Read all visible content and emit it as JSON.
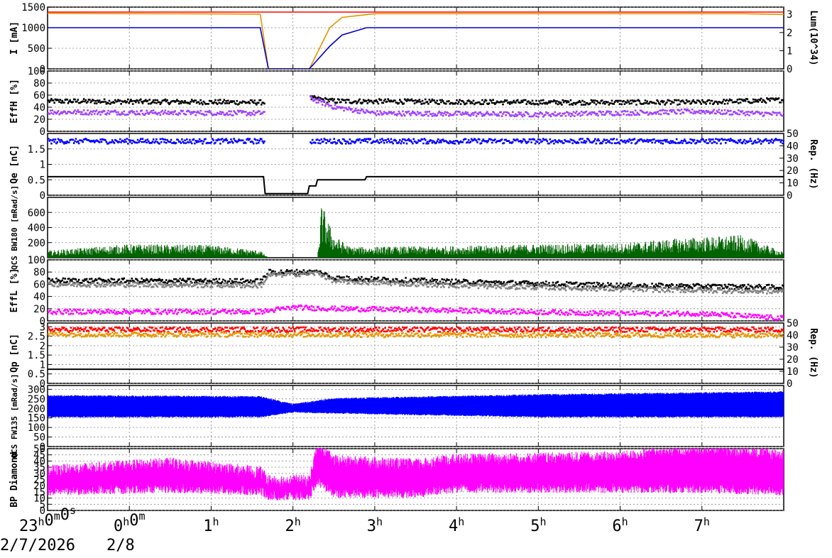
{
  "time_axis": {
    "ticks": [
      {
        "t": 0,
        "label": "23",
        "sup": "h",
        "label2": "0",
        "sup2": "m",
        "label3": "0",
        "sup3": "s"
      },
      {
        "t": 1,
        "label": "0",
        "sup": "h",
        "label2": "0",
        "sup2": "m"
      },
      {
        "t": 2,
        "label": "1",
        "sup": "h"
      },
      {
        "t": 3,
        "label": "2",
        "sup": "h"
      },
      {
        "t": 4,
        "label": "3",
        "sup": "h"
      },
      {
        "t": 5,
        "label": "4",
        "sup": "h"
      },
      {
        "t": 6,
        "label": "5",
        "sup": "h"
      },
      {
        "t": 7,
        "label": "6",
        "sup": "h"
      },
      {
        "t": 8,
        "label": "7",
        "sup": "h"
      }
    ],
    "range_hours": [
      0,
      9
    ],
    "date_left": "2/7/2026",
    "date_right": "2/8"
  },
  "chart_data": [
    {
      "type": "line",
      "panel": "current",
      "ylabel": "I [mA]",
      "ylim": [
        0,
        1500
      ],
      "yticks": [
        0,
        500,
        1000,
        1500
      ],
      "right_axis_label": "Lum(10^34)",
      "right_ylim": [
        0,
        3.4
      ],
      "right_yticks": [
        0,
        1,
        2,
        3
      ],
      "grid": true,
      "series": [
        {
          "color": "#e69500",
          "points": [
            [
              0,
              1350
            ],
            [
              1,
              1340
            ],
            [
              2,
              1335
            ],
            [
              2.6,
              1330
            ],
            [
              2.7,
              0
            ],
            [
              3.2,
              0
            ],
            [
              3.45,
              1000
            ],
            [
              3.6,
              1250
            ],
            [
              4.0,
              1340
            ],
            [
              8.5,
              1340
            ],
            [
              9,
              1320
            ]
          ]
        },
        {
          "color": "#0000cc",
          "points": [
            [
              0,
              1000
            ],
            [
              2.6,
              1000
            ],
            [
              2.7,
              0
            ],
            [
              3.2,
              0
            ],
            [
              3.45,
              550
            ],
            [
              3.6,
              820
            ],
            [
              3.9,
              1000
            ],
            [
              9,
              1000
            ]
          ]
        },
        {
          "color": "#ff0000",
          "points": [
            [
              0,
              1380
            ],
            [
              9,
              1380
            ]
          ]
        }
      ]
    },
    {
      "type": "scatter",
      "panel": "effH",
      "ylabel": "EffH [%]",
      "ylim": [
        0,
        100
      ],
      "yticks": [
        0,
        20,
        40,
        60,
        80,
        100
      ],
      "grid": true,
      "series": [
        {
          "color": "#000000",
          "level": [
            [
              0,
              50
            ],
            [
              2.6,
              48
            ],
            [
              3.2,
              55
            ],
            [
              3.5,
              50
            ],
            [
              6,
              48
            ],
            [
              8,
              48
            ],
            [
              9,
              52
            ]
          ],
          "gap": [
            2.65,
            3.2
          ]
        },
        {
          "color": "#a040ff",
          "level": [
            [
              0,
              32
            ],
            [
              2.6,
              30
            ],
            [
              3.2,
              55
            ],
            [
              3.5,
              40
            ],
            [
              4,
              30
            ],
            [
              6,
              28
            ],
            [
              8,
              33
            ],
            [
              9,
              28
            ]
          ],
          "gap": [
            2.65,
            3.2
          ]
        }
      ]
    },
    {
      "type": "scatter",
      "panel": "qe",
      "ylabel": "Qe [nC]",
      "ylim": [
        0,
        2
      ],
      "yticks": [
        0,
        0.5,
        1,
        1.5
      ],
      "right_axis_label": "Rep. (Hz)",
      "right_ylim": [
        0,
        50
      ],
      "right_yticks": [
        0,
        10,
        20,
        30,
        40,
        50
      ],
      "grid": true,
      "series": [
        {
          "color": "#0000ff",
          "level": [
            [
              0,
              1.75
            ],
            [
              9,
              1.75
            ]
          ],
          "gap": [
            2.65,
            3.2
          ]
        },
        {
          "color": "#000000",
          "step": [
            [
              0,
              0.6
            ],
            [
              2.65,
              0.05
            ],
            [
              3.2,
              0.3
            ],
            [
              3.3,
              0.5
            ],
            [
              3.9,
              0.6
            ],
            [
              9,
              0.6
            ]
          ]
        }
      ]
    },
    {
      "type": "area",
      "panel": "qcs_bw180",
      "ylabel": "QCS BW180 [mRad/s]",
      "ylim": [
        0,
        800
      ],
      "yticks": [
        200,
        400,
        600
      ],
      "grid": true,
      "series": [
        {
          "color": "#006400",
          "level": [
            [
              0,
              80
            ],
            [
              1,
              150
            ],
            [
              2,
              140
            ],
            [
              2.6,
              80
            ],
            [
              2.7,
              0
            ],
            [
              3.3,
              0
            ],
            [
              3.35,
              600
            ],
            [
              3.5,
              250
            ],
            [
              3.7,
              120
            ],
            [
              5,
              130
            ],
            [
              6,
              150
            ],
            [
              7,
              160
            ],
            [
              7.8,
              220
            ],
            [
              8.5,
              250
            ],
            [
              9,
              60
            ]
          ]
        }
      ]
    },
    {
      "type": "scatter",
      "panel": "effL",
      "ylabel": "EffL [%]",
      "ylim": [
        0,
        100
      ],
      "yticks": [
        0,
        20,
        40,
        60,
        80,
        100
      ],
      "grid": true,
      "series": [
        {
          "color": "#000000",
          "level": [
            [
              0,
              66
            ],
            [
              2.6,
              65
            ],
            [
              2.7,
              80
            ],
            [
              3.3,
              80
            ],
            [
              3.5,
              70
            ],
            [
              5,
              64
            ],
            [
              7,
              58
            ],
            [
              9,
              55
            ]
          ]
        },
        {
          "color": "#808080",
          "level": [
            [
              0,
              60
            ],
            [
              2.6,
              58
            ],
            [
              2.7,
              75
            ],
            [
              3.3,
              78
            ],
            [
              3.5,
              65
            ],
            [
              5,
              58
            ],
            [
              7,
              52
            ],
            [
              9,
              48
            ]
          ]
        },
        {
          "color": "#ff00ff",
          "level": [
            [
              0,
              15
            ],
            [
              2.6,
              15
            ],
            [
              3,
              22
            ],
            [
              3.5,
              20
            ],
            [
              5,
              17
            ],
            [
              7,
              12
            ],
            [
              8,
              12
            ],
            [
              9,
              4
            ]
          ]
        }
      ]
    },
    {
      "type": "scatter",
      "panel": "qp",
      "ylabel": "Qp [nC]",
      "ylim": [
        0,
        3.2
      ],
      "yticks": [
        0,
        0.5,
        1,
        1.5,
        2,
        2.5,
        3
      ],
      "right_axis_label": "Rep. (Hz)",
      "right_ylim": [
        0,
        50
      ],
      "right_yticks": [
        0,
        10,
        20,
        30,
        40,
        50
      ],
      "grid": true,
      "series": [
        {
          "color": "#ff0000",
          "level": [
            [
              0,
              2.85
            ],
            [
              9,
              2.85
            ]
          ]
        },
        {
          "color": "#e69500",
          "level": [
            [
              0,
              2.6
            ],
            [
              9,
              2.55
            ]
          ]
        },
        {
          "color": "#000000",
          "step": [
            [
              0,
              0.75
            ],
            [
              9,
              0.75
            ]
          ]
        }
      ]
    },
    {
      "type": "area",
      "panel": "qcs_fw135",
      "ylabel": "QCS FW135 [mRad/s]",
      "ylim": [
        0,
        320
      ],
      "yticks": [
        0,
        50,
        100,
        150,
        200,
        250,
        300
      ],
      "grid": true,
      "series": [
        {
          "color": "#0000ff",
          "band": [
            [
              0,
              160,
              260
            ],
            [
              2.6,
              160,
              255
            ],
            [
              3,
              185,
              215
            ],
            [
              3.5,
              180,
              245
            ],
            [
              6,
              160,
              265
            ],
            [
              8,
              160,
              275
            ],
            [
              9,
              160,
              280
            ]
          ]
        }
      ]
    },
    {
      "type": "area",
      "panel": "bp_diamond",
      "ylabel": "BP Diamond",
      "ylim": [
        0,
        50
      ],
      "yticks": [
        0,
        5,
        10,
        15,
        20,
        25,
        30,
        35,
        40,
        45,
        50
      ],
      "grid": true,
      "series": [
        {
          "color": "#ff00ff",
          "band": [
            [
              0,
              20,
              27
            ],
            [
              1.5,
              22,
              33
            ],
            [
              2.6,
              20,
              26
            ],
            [
              2.7,
              16,
              19
            ],
            [
              3.2,
              16,
              19
            ],
            [
              3.3,
              28,
              48
            ],
            [
              3.5,
              18,
              35
            ],
            [
              4.5,
              18,
              32
            ],
            [
              5,
              22,
              36
            ],
            [
              7,
              22,
              38
            ],
            [
              8,
              22,
              45
            ],
            [
              9,
              20,
              40
            ]
          ]
        }
      ]
    }
  ]
}
